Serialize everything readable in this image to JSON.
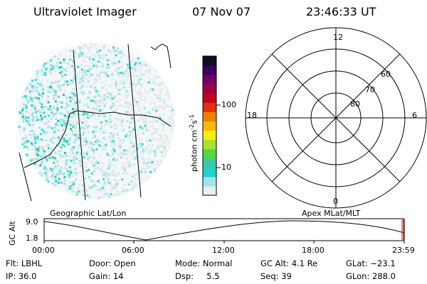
{
  "header": {
    "instrument": "Ultraviolet Imager",
    "date": "07 Nov 07",
    "time": "23:46:33 UT"
  },
  "colorbar": {
    "unit_label": "photon cm",
    "unit_exp1": "-2",
    "unit_s": "s",
    "unit_exp2": "-1",
    "tick_100": "100",
    "tick_10": "10",
    "colors": [
      "#e6eef0",
      "#9fe4ea",
      "#1ed2ce",
      "#3ec8a8",
      "#55d83a",
      "#a8e22a",
      "#f2ee10",
      "#f7b808",
      "#f08000",
      "#e33010",
      "#c8001e",
      "#a00042",
      "#70006a",
      "#3a005a",
      "#101020"
    ]
  },
  "polar_plot": {
    "mlt_12": "12",
    "mlt_18": "18",
    "mlt_6": "6",
    "mlt_0": "0",
    "lat_60": "60",
    "lat_70": "70",
    "lat_80": "80"
  },
  "labels": {
    "geographic": "Geographic Lat/Lon",
    "apex": "Apex MLat/MLT"
  },
  "alt_plot": {
    "axis_title": "GC Alt",
    "y_top": "9.0",
    "y_bottom": "1.8",
    "x_ticks": [
      "00:00",
      "06:00",
      "12:00",
      "18:00",
      "23:59"
    ]
  },
  "info": {
    "flt": "Flt: LBHL",
    "ip": "IP: 36.0",
    "door": "Door: Open",
    "gain": "Gain: 14",
    "mode": "Mode: Normal",
    "dsp": "Dsp:     5.5",
    "gc_alt": "GC Alt: 4.1 Re",
    "seq": "Seq: 39",
    "glat": "GLat: −23.1",
    "glon": "GLon: 288.0"
  }
}
